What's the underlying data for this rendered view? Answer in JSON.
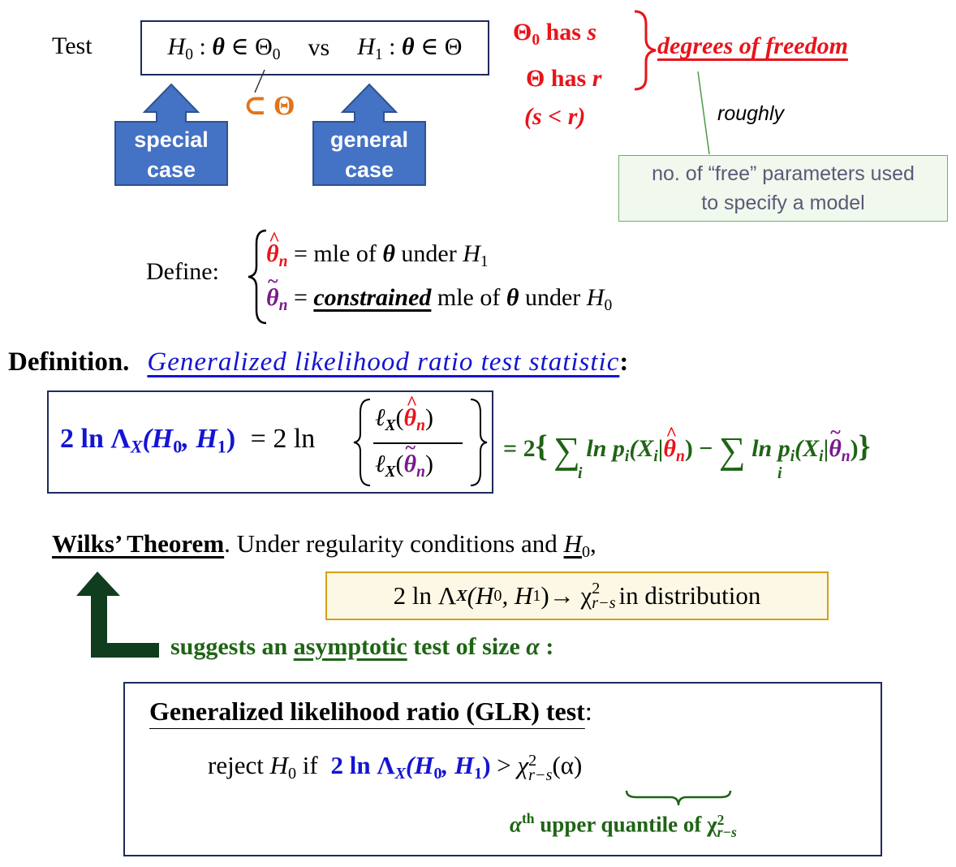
{
  "test_row": {
    "test_label": "Test",
    "h0": "H",
    "h0_sub": "0",
    "colon": ":",
    "theta": "θ",
    "in": "∈",
    "Theta": "Θ",
    "theta0_sub": "0",
    "vs": "vs",
    "h1": "H",
    "h1_sub": "1",
    "subset": "⊂ Θ",
    "special_line1": "special",
    "special_line2": "case",
    "general_line1": "general",
    "general_line2": "case"
  },
  "dof": {
    "line1_Theta": "Θ",
    "line1_sub": "0",
    "line1_text": " has ",
    "line1_var": "s",
    "line2_Theta": "Θ",
    "line2_text": " has ",
    "line2_var": "r",
    "line3": "(s < r)",
    "label": "degrees of freedom",
    "roughly": "roughly",
    "note_line1": "no. of “free” parameters used",
    "note_line2": "to specify a model"
  },
  "define": {
    "label": "Define:",
    "line1_rest": " = mle of ",
    "line1_under": " under ",
    "line2_constrained": "constrained",
    "line2_rest": " mle of ",
    "line2_under": " under ",
    "theta": "θ",
    "n": "n",
    "H": "H",
    "sub1": "1",
    "sub0": "0"
  },
  "definition": {
    "label": "Definition.",
    "title": "Generalized likelihood ratio test statistic",
    "colon": ":",
    "lhs": "2 ln Λ",
    "X": "X",
    "args": "(H",
    "args_sub0": "0",
    "args_mid": ", H",
    "args_sub1": "1",
    "args_end": ")",
    "eq": "= 2 ln",
    "ell": "ℓ",
    "rhs_eq": "= 2",
    "sum": "∑",
    "sum_idx": "i",
    "ln_p": "ln p",
    "Xi": "(X",
    "bar": "|"
  },
  "wilks": {
    "name": "Wilks’ Theorem",
    "period": ".",
    "text": "  Under regularity conditions and ",
    "H": "H",
    "sub0": "0",
    "comma": ",",
    "result_prefix": "2 ln Λ",
    "result_mid": " → χ",
    "result_sup": "2",
    "result_sub": "r−s",
    "result_suffix": " in distribution",
    "suggests_prefix": "suggests an ",
    "asymptotic": "asymptotic",
    "suggests_suffix": " test of size ",
    "alpha": "α",
    "suggests_colon": " :"
  },
  "glr_test": {
    "title": "Generalized likelihood ratio (GLR) test",
    "colon": ":",
    "reject": "reject ",
    "if": " if ",
    "gt": " > ",
    "chi": "χ",
    "chi_sup": "2",
    "chi_sub": "r−s",
    "chi_arg": "(α)",
    "quantile_alpha": "α",
    "quantile_th": "th",
    "quantile_text": " upper quantile of χ",
    "quantile_sup": "2",
    "quantile_sub": "r−s"
  },
  "colors": {
    "red": "#e8141a",
    "blue": "#1414d2",
    "purple": "#7a1a8c",
    "green": "#1e6414",
    "orange": "#e0741c",
    "arrow_blue": "#4472c4",
    "dark_green_arrow": "#0f3d1e",
    "box_navy": "#1f2a5c",
    "gold_border": "#d4a014"
  }
}
